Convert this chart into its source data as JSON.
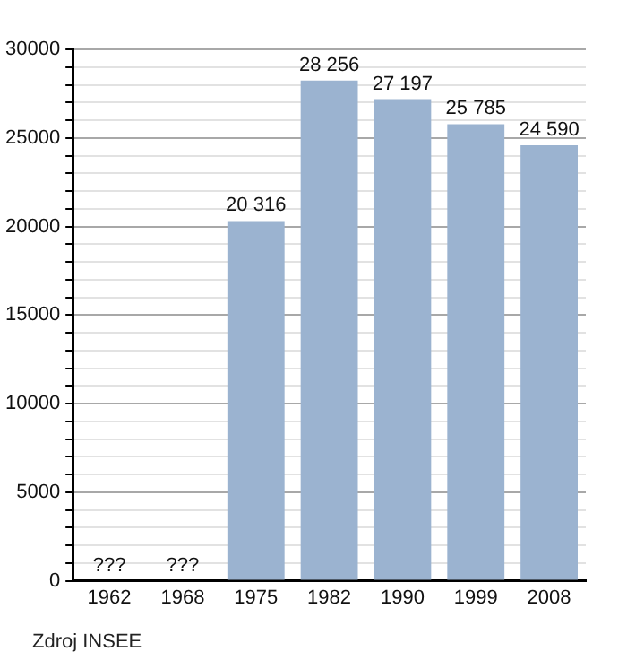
{
  "chart_data": {
    "type": "bar",
    "categories": [
      "1962",
      "1968",
      "1975",
      "1982",
      "1990",
      "1999",
      "2008"
    ],
    "values": [
      null,
      null,
      20316,
      28256,
      27197,
      25785,
      24590
    ],
    "value_labels": [
      "???",
      "???",
      "20 316",
      "28 256",
      "27 197",
      "25 785",
      "24 590"
    ],
    "color": "#9bb3d0",
    "ylim": [
      0,
      30000
    ],
    "yticks": [
      0,
      {
        "value": 1000,
        "label": null
      },
      {
        "value": 2000,
        "label": null
      },
      {
        "value": 3000,
        "label": null
      },
      {
        "value": 4000,
        "label": null
      },
      5000,
      {
        "value": 6000,
        "label": null
      },
      {
        "value": 7000,
        "label": null
      },
      {
        "value": 8000,
        "label": null
      },
      {
        "value": 9000,
        "label": null
      },
      10000,
      {
        "value": 11000,
        "label": null
      },
      {
        "value": 12000,
        "label": null
      },
      {
        "value": 13000,
        "label": null
      },
      {
        "value": 14000,
        "label": null
      },
      15000,
      {
        "value": 16000,
        "label": null
      },
      {
        "value": 17000,
        "label": null
      },
      {
        "value": 18000,
        "label": null
      },
      {
        "value": 19000,
        "label": null
      },
      20000,
      {
        "value": 21000,
        "label": null
      },
      {
        "value": 22000,
        "label": null
      },
      {
        "value": 23000,
        "label": null
      },
      {
        "value": 24000,
        "label": null
      },
      25000,
      {
        "value": 26000,
        "label": null
      },
      {
        "value": 27000,
        "label": null
      },
      {
        "value": 28000,
        "label": null
      },
      {
        "value": 29000,
        "label": null
      },
      30000
    ],
    "grid": "y",
    "legend": false,
    "annotations": [
      "Zdroj INSEE"
    ]
  }
}
